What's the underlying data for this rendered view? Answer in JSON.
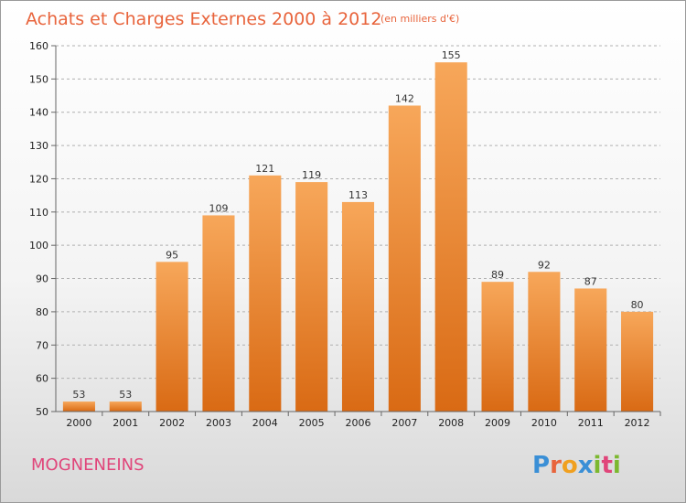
{
  "title": "Achats et Charges Externes 2000 à 2012",
  "unit_note": "(en milliers d'€)",
  "commune": "MOGNENEINS",
  "logo": {
    "letters": [
      "P",
      "r",
      "o",
      "x",
      "i",
      "t",
      "i"
    ],
    "colors": [
      "#3a8fd6",
      "#e8643c",
      "#f0a020",
      "#3a8fd6",
      "#7cb82f",
      "#e0457a",
      "#7cb82f"
    ]
  },
  "colors": {
    "bar_top": "#f7a75a",
    "bar_bottom": "#d96a14",
    "grid": "#b0b0b0",
    "title": "#e8643c",
    "commune": "#e0457a"
  },
  "chart_data": {
    "type": "bar",
    "categories": [
      "2000",
      "2001",
      "2002",
      "2003",
      "2004",
      "2005",
      "2006",
      "2007",
      "2008",
      "2009",
      "2010",
      "2011",
      "2012"
    ],
    "values": [
      53,
      53,
      95,
      109,
      121,
      119,
      113,
      142,
      155,
      89,
      92,
      87,
      80
    ],
    "ylim": [
      50,
      160
    ],
    "yticks": [
      50,
      60,
      70,
      80,
      90,
      100,
      110,
      120,
      130,
      140,
      150,
      160
    ],
    "grid": true,
    "data_labels": true
  }
}
